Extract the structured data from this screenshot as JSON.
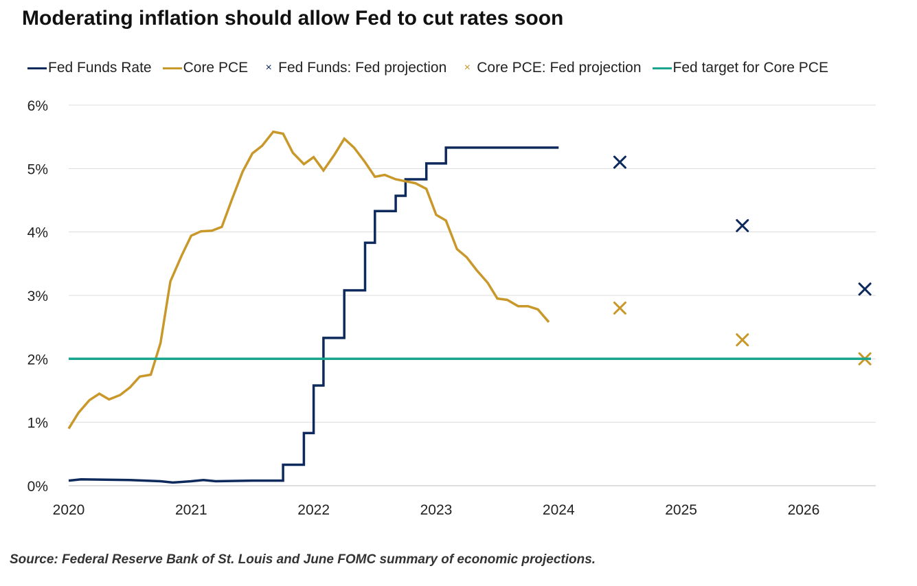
{
  "title": "Moderating inflation should allow Fed to cut rates soon",
  "source": "Source: Federal Reserve Bank of St. Louis and June FOMC summary of economic projections.",
  "colors": {
    "fed_funds": "#0e2a5c",
    "core_pce": "#c9982a",
    "target": "#1aa58f",
    "grid": "#dcdcdc",
    "axis_text": "#222222"
  },
  "legend": [
    {
      "label": "Fed Funds Rate",
      "marker": "line",
      "color": "#0e2a5c"
    },
    {
      "label": "Core PCE",
      "marker": "line",
      "color": "#c9982a"
    },
    {
      "label": "Fed Funds: Fed projection",
      "marker": "x",
      "color": "#0e2a5c"
    },
    {
      "label": "Core PCE: Fed projection",
      "marker": "x",
      "color": "#c9982a"
    },
    {
      "label": "Fed target for Core PCE",
      "marker": "line",
      "color": "#1aa58f"
    }
  ],
  "chart_data": {
    "type": "line",
    "title": "Moderating inflation should allow Fed to cut rates soon",
    "xlabel": "",
    "ylabel": "",
    "xlim": [
      2020.0,
      2026.55
    ],
    "ylim": [
      0,
      6
    ],
    "x_ticks": [
      2020,
      2021,
      2022,
      2023,
      2024,
      2025,
      2026
    ],
    "x_tick_labels": [
      "2020",
      "2021",
      "2022",
      "2023",
      "2024",
      "2025",
      "2026"
    ],
    "y_ticks": [
      0,
      1,
      2,
      3,
      4,
      5,
      6
    ],
    "y_tick_labels": [
      "0%",
      "1%",
      "2%",
      "3%",
      "4%",
      "5%",
      "6%"
    ],
    "grid": "horizontal",
    "legend_position": "top",
    "series": [
      {
        "name": "Fed Funds Rate",
        "style": "step",
        "color": "#0e2a5c",
        "points": [
          [
            2020.0,
            0.08
          ],
          [
            2020.1,
            0.1
          ],
          [
            2020.5,
            0.09
          ],
          [
            2020.75,
            0.07
          ],
          [
            2020.85,
            0.05
          ],
          [
            2021.0,
            0.07
          ],
          [
            2021.1,
            0.09
          ],
          [
            2021.2,
            0.07
          ],
          [
            2021.5,
            0.08
          ],
          [
            2021.75,
            0.08
          ],
          [
            2021.75,
            0.33
          ],
          [
            2021.92,
            0.33
          ],
          [
            2021.92,
            0.83
          ],
          [
            2022.0,
            0.83
          ],
          [
            2022.0,
            1.58
          ],
          [
            2022.08,
            1.58
          ],
          [
            2022.08,
            2.33
          ],
          [
            2022.25,
            2.33
          ],
          [
            2022.25,
            3.08
          ],
          [
            2022.42,
            3.08
          ],
          [
            2022.42,
            3.83
          ],
          [
            2022.5,
            3.83
          ],
          [
            2022.5,
            4.33
          ],
          [
            2022.67,
            4.33
          ],
          [
            2022.67,
            4.57
          ],
          [
            2022.75,
            4.57
          ],
          [
            2022.75,
            4.83
          ],
          [
            2022.92,
            4.83
          ],
          [
            2022.92,
            5.08
          ],
          [
            2023.08,
            5.08
          ],
          [
            2023.08,
            5.33
          ],
          [
            2024.0,
            5.33
          ]
        ]
      },
      {
        "name": "Core PCE",
        "style": "line",
        "color": "#c9982a",
        "points": [
          [
            2020.0,
            0.9
          ],
          [
            2020.08,
            1.15
          ],
          [
            2020.17,
            1.35
          ],
          [
            2020.25,
            1.45
          ],
          [
            2020.33,
            1.36
          ],
          [
            2020.42,
            1.43
          ],
          [
            2020.5,
            1.55
          ],
          [
            2020.58,
            1.72
          ],
          [
            2020.67,
            1.75
          ],
          [
            2020.75,
            2.25
          ],
          [
            2020.83,
            3.22
          ],
          [
            2020.92,
            3.62
          ],
          [
            2021.0,
            3.94
          ],
          [
            2021.08,
            4.01
          ],
          [
            2021.17,
            4.02
          ],
          [
            2021.25,
            4.08
          ],
          [
            2021.33,
            4.5
          ],
          [
            2021.42,
            4.95
          ],
          [
            2021.5,
            5.24
          ],
          [
            2021.58,
            5.36
          ],
          [
            2021.67,
            5.58
          ],
          [
            2021.75,
            5.55
          ],
          [
            2021.83,
            5.25
          ],
          [
            2021.92,
            5.07
          ],
          [
            2022.0,
            5.18
          ],
          [
            2022.08,
            4.97
          ],
          [
            2022.17,
            5.22
          ],
          [
            2022.25,
            5.47
          ],
          [
            2022.33,
            5.33
          ],
          [
            2022.42,
            5.1
          ],
          [
            2022.5,
            4.87
          ],
          [
            2022.58,
            4.9
          ],
          [
            2022.67,
            4.83
          ],
          [
            2022.75,
            4.8
          ],
          [
            2022.83,
            4.77
          ],
          [
            2022.92,
            4.68
          ],
          [
            2023.0,
            4.27
          ],
          [
            2023.08,
            4.18
          ],
          [
            2023.17,
            3.73
          ],
          [
            2023.25,
            3.6
          ],
          [
            2023.33,
            3.4
          ],
          [
            2023.42,
            3.2
          ],
          [
            2023.5,
            2.95
          ],
          [
            2023.58,
            2.93
          ],
          [
            2023.67,
            2.83
          ],
          [
            2023.75,
            2.83
          ],
          [
            2023.83,
            2.78
          ],
          [
            2023.92,
            2.58
          ]
        ]
      },
      {
        "name": "Fed Funds: Fed projection",
        "style": "marker-x",
        "color": "#0e2a5c",
        "points": [
          [
            2024.5,
            5.1
          ],
          [
            2025.5,
            4.1
          ],
          [
            2026.5,
            3.1
          ]
        ]
      },
      {
        "name": "Core PCE: Fed projection",
        "style": "marker-x",
        "color": "#c9982a",
        "points": [
          [
            2024.5,
            2.8
          ],
          [
            2025.5,
            2.3
          ],
          [
            2026.5,
            2.0
          ]
        ]
      },
      {
        "name": "Fed target for Core PCE",
        "style": "hline",
        "color": "#1aa58f",
        "points": [
          [
            2020.0,
            2.0
          ],
          [
            2026.55,
            2.0
          ]
        ]
      }
    ]
  }
}
